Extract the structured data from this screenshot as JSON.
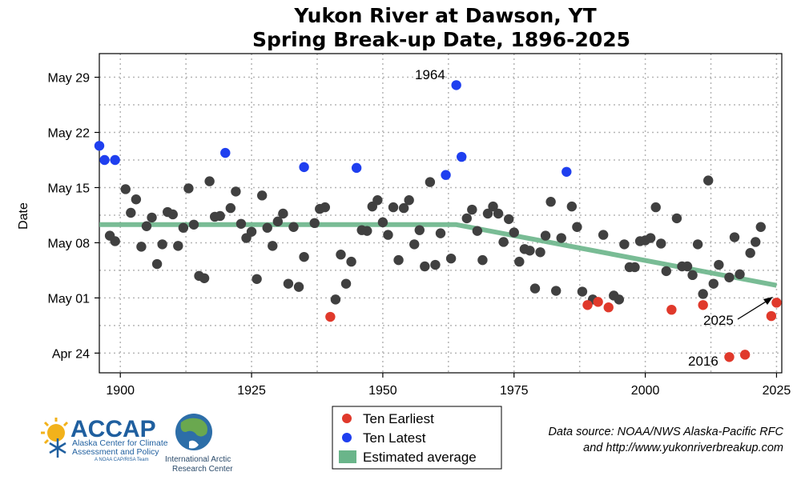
{
  "chart_data": {
    "type": "scatter",
    "title": "Yukon River at Dawson, YT",
    "subtitle": "Spring Break-up Date, 1896-2025",
    "ylabel": "Date",
    "xlabel": "",
    "xlim": [
      1896,
      2026
    ],
    "ylim_day_of_year": [
      111.5,
      152.0
    ],
    "x_ticks": [
      1900,
      1925,
      1950,
      1975,
      2000,
      2025
    ],
    "y_ticks": [
      {
        "label": "Apr 24",
        "day": 114
      },
      {
        "label": "May 01",
        "day": 121
      },
      {
        "label": "May 08",
        "day": 128
      },
      {
        "label": "May 15",
        "day": 135
      },
      {
        "label": "May 22",
        "day": 142
      },
      {
        "label": "May 29",
        "day": 149
      }
    ],
    "grid": true,
    "legend_position": "bottom-center",
    "series": [
      {
        "name": "",
        "color": "#404040",
        "points": [
          [
            1898,
            128.9
          ],
          [
            1899,
            128.2
          ],
          [
            1901,
            134.8
          ],
          [
            1902,
            131.8
          ],
          [
            1903,
            133.5
          ],
          [
            1904,
            127.5
          ],
          [
            1905,
            130.1
          ],
          [
            1906,
            131.2
          ],
          [
            1907,
            125.3
          ],
          [
            1908,
            127.8
          ],
          [
            1909,
            131.9
          ],
          [
            1910,
            131.6
          ],
          [
            1911,
            127.6
          ],
          [
            1912,
            129.9
          ],
          [
            1913,
            134.9
          ],
          [
            1914,
            130.3
          ],
          [
            1915,
            123.8
          ],
          [
            1916,
            123.5
          ],
          [
            1917,
            135.8
          ],
          [
            1918,
            131.3
          ],
          [
            1919,
            131.4
          ],
          [
            1921,
            132.4
          ],
          [
            1922,
            134.5
          ],
          [
            1923,
            130.4
          ],
          [
            1924,
            128.6
          ],
          [
            1925,
            129.4
          ],
          [
            1926,
            123.4
          ],
          [
            1927,
            134.0
          ],
          [
            1928,
            129.9
          ],
          [
            1929,
            127.6
          ],
          [
            1930,
            130.7
          ],
          [
            1931,
            131.7
          ],
          [
            1932,
            122.8
          ],
          [
            1933,
            130.0
          ],
          [
            1934,
            122.4
          ],
          [
            1935,
            126.2
          ],
          [
            1937,
            130.5
          ],
          [
            1938,
            132.3
          ],
          [
            1939,
            132.5
          ],
          [
            1941,
            120.8
          ],
          [
            1942,
            126.5
          ],
          [
            1943,
            122.8
          ],
          [
            1944,
            125.6
          ],
          [
            1946,
            129.6
          ],
          [
            1947,
            129.5
          ],
          [
            1948,
            132.6
          ],
          [
            1949,
            133.4
          ],
          [
            1950,
            130.6
          ],
          [
            1951,
            129.0
          ],
          [
            1952,
            132.5
          ],
          [
            1953,
            125.8
          ],
          [
            1954,
            132.4
          ],
          [
            1955,
            133.4
          ],
          [
            1956,
            127.8
          ],
          [
            1957,
            129.6
          ],
          [
            1958,
            125.0
          ],
          [
            1959,
            135.7
          ],
          [
            1960,
            125.2
          ],
          [
            1961,
            129.2
          ],
          [
            1963,
            126.0
          ],
          [
            1966,
            131.1
          ],
          [
            1967,
            132.2
          ],
          [
            1968,
            129.5
          ],
          [
            1969,
            125.8
          ],
          [
            1970,
            131.7
          ],
          [
            1971,
            132.6
          ],
          [
            1972,
            131.7
          ],
          [
            1973,
            128.1
          ],
          [
            1974,
            131.0
          ],
          [
            1975,
            129.3
          ],
          [
            1976,
            125.6
          ],
          [
            1977,
            127.2
          ],
          [
            1978,
            127.0
          ],
          [
            1979,
            122.2
          ],
          [
            1980,
            126.8
          ],
          [
            1981,
            128.9
          ],
          [
            1982,
            133.2
          ],
          [
            1983,
            121.9
          ],
          [
            1984,
            128.6
          ],
          [
            1986,
            132.6
          ],
          [
            1987,
            130.0
          ],
          [
            1988,
            121.8
          ],
          [
            1994,
            121.3
          ],
          [
            1995,
            120.8
          ],
          [
            1996,
            127.8
          ],
          [
            1997,
            124.9
          ],
          [
            1998,
            124.9
          ],
          [
            1999,
            128.2
          ],
          [
            2001,
            128.6
          ],
          [
            2002,
            132.5
          ],
          [
            2003,
            127.9
          ],
          [
            2004,
            124.4
          ],
          [
            2006,
            131.1
          ],
          [
            2007,
            125.0
          ],
          [
            2008,
            125.0
          ],
          [
            2009,
            123.9
          ],
          [
            2010,
            127.8
          ],
          [
            2011,
            121.5
          ],
          [
            2012,
            135.9
          ],
          [
            2013,
            122.8
          ],
          [
            2014,
            125.2
          ],
          [
            2016,
            123.6
          ],
          [
            2017,
            128.7
          ],
          [
            2018,
            124.0
          ],
          [
            2020,
            126.7
          ],
          [
            2021,
            128.1
          ],
          [
            2022,
            130.0
          ],
          [
            1990,
            120.8
          ],
          [
            1992,
            129.0
          ],
          [
            2000,
            128.3
          ]
        ]
      },
      {
        "name": "Ten Earliest",
        "color": "#e0392b",
        "points": [
          [
            1940,
            118.6
          ],
          [
            1989,
            120.1
          ],
          [
            1991,
            120.5
          ],
          [
            1993,
            119.8
          ],
          [
            2005,
            119.5
          ],
          [
            2011,
            120.1
          ],
          [
            2016,
            113.5
          ],
          [
            2019,
            113.8
          ],
          [
            2024,
            118.7
          ],
          [
            2025,
            120.4
          ]
        ]
      },
      {
        "name": "Ten Latest",
        "color": "#1f3fef",
        "points": [
          [
            1896,
            140.3
          ],
          [
            1897,
            138.5
          ],
          [
            1899,
            138.5
          ],
          [
            1920,
            139.4
          ],
          [
            1935,
            137.6
          ],
          [
            1945,
            137.5
          ],
          [
            1962,
            136.6
          ],
          [
            1964,
            148.0
          ],
          [
            1965,
            138.9
          ],
          [
            1985,
            137.0
          ]
        ]
      },
      {
        "name": "Estimated average",
        "color": "#6ab58a",
        "line": [
          [
            1896,
            130.3
          ],
          [
            1964,
            130.3
          ],
          [
            2025,
            122.6
          ]
        ]
      }
    ],
    "annotations": [
      {
        "text": "1964",
        "x": 1964,
        "day": 148.0
      },
      {
        "text": "2025",
        "x": 2025,
        "day": 120.4
      },
      {
        "text": "2016",
        "x": 2016,
        "day": 113.5
      }
    ]
  },
  "legend": {
    "items": [
      {
        "label": "Ten Earliest",
        "color": "#e0392b",
        "kind": "dot"
      },
      {
        "label": "Ten Latest",
        "color": "#1f3fef",
        "kind": "dot"
      },
      {
        "label": "Estimated average",
        "color": "#6ab58a",
        "kind": "swatch"
      }
    ]
  },
  "source": {
    "line1": "Data source: NOAA/NWS Alaska-Pacific RFC",
    "line2": "and  http://www.yukonriverbreakup.com"
  },
  "logos": {
    "accap_name": "ACCAP",
    "accap_line1": "Alaska Center for Climate",
    "accap_line2": "Assessment and Policy",
    "accap_line3": "A NOAA CAP/RISA Team",
    "iarc_line1": "International Arctic",
    "iarc_line2": "Research Center"
  }
}
